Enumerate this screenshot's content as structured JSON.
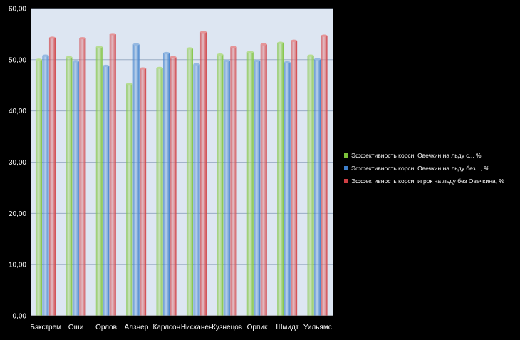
{
  "chart_data": {
    "type": "bar",
    "categories": [
      "Бэкстрем",
      "Оши",
      "Орлов",
      "Алзнер",
      "Карлсон",
      "Нисканен",
      "Кузнецов",
      "Орпик",
      "Шмидт",
      "Уильямс"
    ],
    "series": [
      {
        "name": "Эффективность корси, Овечкин на льду с... %",
        "color": "#7cc23a",
        "values": [
          50.0,
          50.5,
          52.5,
          45.3,
          48.4,
          52.2,
          51.0,
          51.5,
          53.3,
          50.8
        ]
      },
      {
        "name": "Эффективность корси, Овечкин на льду без..., %",
        "color": "#3e7fcb",
        "values": [
          50.8,
          49.7,
          48.8,
          53.0,
          51.3,
          49.1,
          49.8,
          49.8,
          49.5,
          50.1
        ]
      },
      {
        "name": "Эффективность корси, игрок на льду без Овечкина, %",
        "color": "#cf3f44",
        "values": [
          54.3,
          54.2,
          55.0,
          48.3,
          50.5,
          55.4,
          52.5,
          53.0,
          53.7,
          54.7
        ]
      }
    ],
    "ylim": [
      0,
      60
    ],
    "yticks": [
      "0,00",
      "10,00",
      "20,00",
      "30,00",
      "40,00",
      "50,00",
      "60,00"
    ],
    "grid": true,
    "legend_position": "right",
    "plot_background": "#dde6f2",
    "page_background": "#000000"
  }
}
